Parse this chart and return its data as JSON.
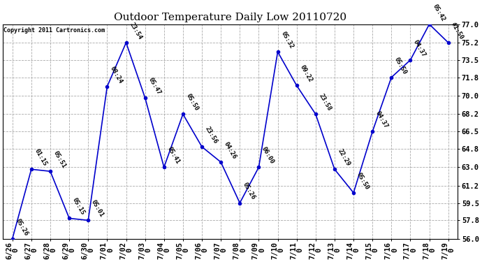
{
  "title": "Outdoor Temperature Daily Low 20110720",
  "copyright": "Copyright 2011 Cartronics.com",
  "x_labels": [
    "6/26\n0",
    "6/27\n0",
    "6/28\n0",
    "6/29\n0",
    "6/30\n0",
    "7/01\n0",
    "7/02\n0",
    "7/03\n0",
    "7/04\n0",
    "7/05\n0",
    "7/06\n0",
    "7/07\n0",
    "7/08\n0",
    "7/09\n0",
    "7/10\n0",
    "7/11\n0",
    "7/12\n0",
    "7/13\n0",
    "7/14\n0",
    "7/15\n0",
    "7/16\n0",
    "7/17\n0",
    "7/18\n0",
    "7/19\n0"
  ],
  "y_values": [
    56.0,
    62.8,
    62.6,
    58.0,
    57.8,
    70.9,
    75.2,
    69.8,
    63.0,
    68.2,
    65.0,
    63.5,
    59.5,
    63.0,
    74.3,
    71.0,
    68.2,
    62.8,
    60.5,
    66.5,
    71.8,
    73.5,
    77.0,
    75.2
  ],
  "point_labels": [
    "05:26",
    "01:15",
    "05:51",
    "05:15",
    "05:01",
    "08:24",
    "23:54",
    "05:47",
    "05:41",
    "05:50",
    "23:56",
    "04:26",
    "05:26",
    "06:00",
    "05:32",
    "09:22",
    "23:58",
    "22:29",
    "05:50",
    "04:37",
    "05:50",
    "04:37",
    "05:42",
    "#1:50"
  ],
  "line_color": "#0000cc",
  "marker_color": "#0000cc",
  "background_color": "#ffffff",
  "grid_color": "#aaaaaa",
  "ylim": [
    56.0,
    77.0
  ],
  "yticks": [
    56.0,
    57.8,
    59.5,
    61.2,
    63.0,
    64.8,
    66.5,
    68.2,
    70.0,
    71.8,
    73.5,
    75.2,
    77.0
  ],
  "title_fontsize": 11,
  "label_fontsize": 6.5,
  "tick_fontsize": 7.5
}
